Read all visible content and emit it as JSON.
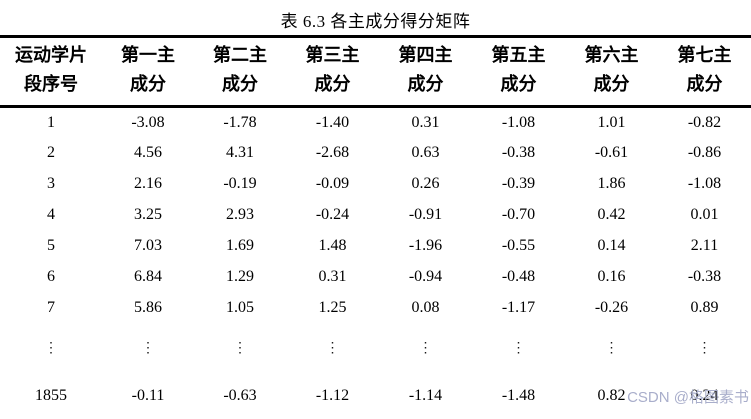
{
  "title": "表 6.3 各主成分得分矩阵",
  "table": {
    "column_headers": [
      {
        "line1": "运动学片",
        "line2": "段序号"
      },
      {
        "line1": "第一主",
        "line2": "成分"
      },
      {
        "line1": "第二主",
        "line2": "成分"
      },
      {
        "line1": "第三主",
        "line2": "成分"
      },
      {
        "line1": "第四主",
        "line2": "成分"
      },
      {
        "line1": "第五主",
        "line2": "成分"
      },
      {
        "line1": "第六主",
        "line2": "成分"
      },
      {
        "line1": "第七主",
        "line2": "成分"
      }
    ],
    "rows": [
      [
        "1",
        "-3.08",
        "-1.78",
        "-1.40",
        "0.31",
        "-1.08",
        "1.01",
        "-0.82"
      ],
      [
        "2",
        "4.56",
        "4.31",
        "-2.68",
        "0.63",
        "-0.38",
        "-0.61",
        "-0.86"
      ],
      [
        "3",
        "2.16",
        "-0.19",
        "-0.09",
        "0.26",
        "-0.39",
        "1.86",
        "-1.08"
      ],
      [
        "4",
        "3.25",
        "2.93",
        "-0.24",
        "-0.91",
        "-0.70",
        "0.42",
        "0.01"
      ],
      [
        "5",
        "7.03",
        "1.69",
        "1.48",
        "-1.96",
        "-0.55",
        "0.14",
        "2.11"
      ],
      [
        "6",
        "6.84",
        "1.29",
        "0.31",
        "-0.94",
        "-0.48",
        "0.16",
        "-0.38"
      ],
      [
        "7",
        "5.86",
        "1.05",
        "1.25",
        "0.08",
        "-1.17",
        "-0.26",
        "0.89"
      ],
      [
        "⋮",
        "⋮",
        "⋮",
        "⋮",
        "⋮",
        "⋮",
        "⋮",
        "⋮"
      ],
      [
        "1855",
        "-0.11",
        "-0.63",
        "-1.12",
        "-1.14",
        "-1.48",
        "0.82",
        "0.24"
      ]
    ]
  },
  "watermark": {
    "text": "CSDN @格图素书",
    "color": "#a9aecb"
  }
}
